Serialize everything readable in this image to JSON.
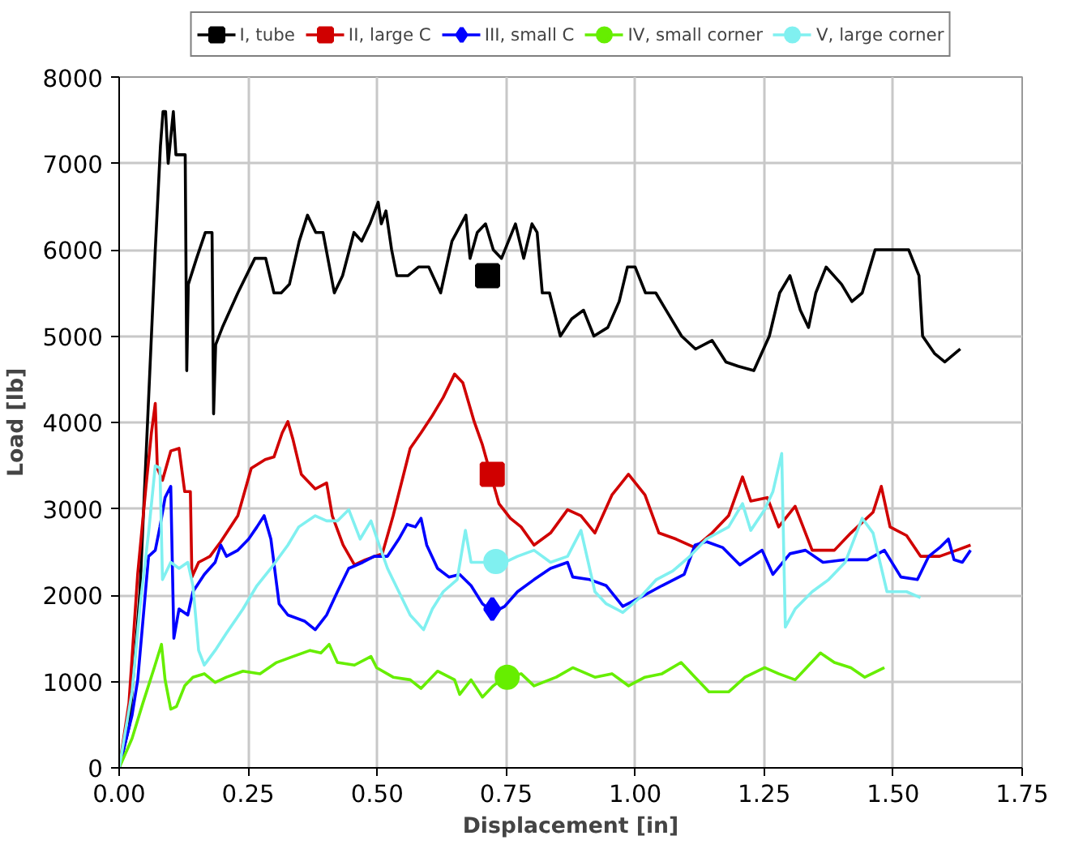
{
  "chart_data": {
    "type": "line",
    "xlabel": "Displacement [in]",
    "ylabel": "Load [lb]",
    "xlim": [
      0,
      1.75
    ],
    "ylim": [
      0,
      8000
    ],
    "xticks": [
      {
        "value": 0,
        "label": "0.00"
      },
      {
        "value": 0.25,
        "label": "0.25"
      },
      {
        "value": 0.5,
        "label": "0.50"
      },
      {
        "value": 0.75,
        "label": "0.75"
      },
      {
        "value": 1.0,
        "label": "1.00"
      },
      {
        "value": 1.25,
        "label": "1.25"
      },
      {
        "value": 1.5,
        "label": "1.50"
      },
      {
        "value": 1.75,
        "label": "1.75"
      }
    ],
    "yticks": [
      0,
      1000,
      2000,
      3000,
      4000,
      5000,
      6000,
      7000,
      8000
    ],
    "grid": true,
    "legend": "top",
    "line_style": "solid",
    "series": [
      {
        "name": "I, tube",
        "color": "#000000",
        "x": [
          0,
          0.02,
          0.04,
          0.055,
          0.07,
          0.08,
          0.085,
          0.09,
          0.095,
          0.1,
          0.105,
          0.11,
          0.118,
          0.128,
          0.131,
          0.134,
          0.15,
          0.167,
          0.18,
          0.183,
          0.187,
          0.2,
          0.23,
          0.263,
          0.284,
          0.3,
          0.314,
          0.33,
          0.349,
          0.365,
          0.381,
          0.395,
          0.417,
          0.433,
          0.455,
          0.47,
          0.486,
          0.502,
          0.508,
          0.517,
          0.528,
          0.538,
          0.56,
          0.58,
          0.6,
          0.623,
          0.645,
          0.672,
          0.68,
          0.694,
          0.71,
          0.725,
          0.741,
          0.768,
          0.784,
          0.8,
          0.81,
          0.82,
          0.834,
          0.855,
          0.877,
          0.9,
          0.92,
          0.947,
          0.969,
          0.985,
          1.0,
          1.02,
          1.04,
          1.06,
          1.09,
          1.117,
          1.149,
          1.176,
          1.2,
          1.23,
          1.26,
          1.28,
          1.3,
          1.32,
          1.336,
          1.35,
          1.37,
          1.4,
          1.42,
          1.44,
          1.465,
          1.5,
          1.53,
          1.55,
          1.557,
          1.58,
          1.6,
          1.63
        ],
        "values": [
          0,
          500,
          2000,
          4000,
          6000,
          7200,
          7600,
          7600,
          7000,
          7300,
          7600,
          7100,
          7100,
          7100,
          4600,
          5600,
          5900,
          6200,
          6200,
          4100,
          4900,
          5100,
          5500,
          5900,
          5900,
          5500,
          5500,
          5600,
          6100,
          6400,
          6200,
          6200,
          5500,
          5700,
          6200,
          6100,
          6300,
          6550,
          6300,
          6450,
          6000,
          5700,
          5700,
          5800,
          5800,
          5500,
          6100,
          6400,
          5900,
          6200,
          6300,
          6000,
          5900,
          6300,
          5900,
          6300,
          6200,
          5500,
          5500,
          5000,
          5200,
          5300,
          5000,
          5100,
          5400,
          5800,
          5800,
          5500,
          5500,
          5300,
          5000,
          4850,
          4950,
          4700,
          4650,
          4600,
          5000,
          5500,
          5700,
          5300,
          5100,
          5500,
          5800,
          5600,
          5400,
          5500,
          6000,
          6000,
          6000,
          5700,
          5000,
          4800,
          4700,
          4850
        ]
      },
      {
        "type": "scatter",
        "marker": "square",
        "color": "#000000",
        "x": [
          0.714
        ],
        "values": [
          5700
        ]
      },
      {
        "name": "II, large C",
        "color": "#d00000",
        "x": [
          0,
          0.019,
          0.036,
          0.052,
          0.0625,
          0.07,
          0.074,
          0.084,
          0.1,
          0.116,
          0.127,
          0.138,
          0.141,
          0.154,
          0.176,
          0.197,
          0.23,
          0.256,
          0.283,
          0.3,
          0.316,
          0.327,
          0.337,
          0.353,
          0.38,
          0.402,
          0.413,
          0.434,
          0.456,
          0.477,
          0.51,
          0.531,
          0.564,
          0.585,
          0.607,
          0.628,
          0.65,
          0.666,
          0.688,
          0.704,
          0.72,
          0.736,
          0.758,
          0.779,
          0.804,
          0.836,
          0.869,
          0.895,
          0.922,
          0.955,
          0.987,
          1.019,
          1.046,
          1.079,
          1.116,
          1.149,
          1.181,
          1.208,
          1.224,
          1.256,
          1.278,
          1.31,
          1.343,
          1.386,
          1.418,
          1.461,
          1.477,
          1.494,
          1.526,
          1.553,
          1.59,
          1.623,
          1.65
        ],
        "values": [
          0,
          750,
          2250,
          3260,
          3880,
          4220,
          3470,
          3330,
          3670,
          3700,
          3200,
          3200,
          2210,
          2380,
          2450,
          2620,
          2920,
          3470,
          3570,
          3600,
          3880,
          4010,
          3800,
          3400,
          3230,
          3300,
          2920,
          2580,
          2350,
          2410,
          2480,
          2920,
          3700,
          3880,
          4080,
          4290,
          4560,
          4460,
          4010,
          3740,
          3400,
          3060,
          2890,
          2790,
          2580,
          2720,
          2990,
          2920,
          2720,
          3160,
          3400,
          3160,
          2720,
          2650,
          2550,
          2720,
          2920,
          3370,
          3090,
          3130,
          2790,
          3030,
          2520,
          2520,
          2720,
          2960,
          3260,
          2790,
          2690,
          2450,
          2450,
          2520,
          2580
        ]
      },
      {
        "type": "scatter",
        "marker": "square",
        "color": "#d00000",
        "x": [
          0.723
        ],
        "values": [
          3400
        ]
      },
      {
        "name": "III, small C",
        "color": "#0000ff",
        "x": [
          0,
          0.025,
          0.036,
          0.046,
          0.057,
          0.07,
          0.079,
          0.089,
          0.1,
          0.106,
          0.116,
          0.133,
          0.143,
          0.165,
          0.186,
          0.197,
          0.208,
          0.23,
          0.251,
          0.267,
          0.281,
          0.294,
          0.31,
          0.327,
          0.359,
          0.38,
          0.402,
          0.423,
          0.445,
          0.472,
          0.494,
          0.52,
          0.542,
          0.558,
          0.574,
          0.585,
          0.596,
          0.617,
          0.639,
          0.66,
          0.682,
          0.704,
          0.725,
          0.747,
          0.772,
          0.804,
          0.836,
          0.869,
          0.879,
          0.912,
          0.944,
          0.976,
          1.009,
          1.052,
          1.095,
          1.116,
          1.138,
          1.17,
          1.203,
          1.246,
          1.267,
          1.3,
          1.33,
          1.364,
          1.407,
          1.45,
          1.483,
          1.515,
          1.547,
          1.569,
          1.59,
          1.607,
          1.618,
          1.634,
          1.65
        ],
        "values": [
          0,
          610,
          1020,
          1700,
          2450,
          2520,
          2790,
          3130,
          3260,
          1500,
          1840,
          1770,
          2040,
          2240,
          2380,
          2580,
          2450,
          2520,
          2650,
          2790,
          2920,
          2650,
          1900,
          1770,
          1700,
          1600,
          1770,
          2040,
          2310,
          2380,
          2450,
          2450,
          2650,
          2820,
          2790,
          2890,
          2580,
          2310,
          2210,
          2240,
          2110,
          1900,
          1800,
          1870,
          2040,
          2180,
          2310,
          2380,
          2210,
          2180,
          2110,
          1870,
          1970,
          2110,
          2240,
          2580,
          2620,
          2550,
          2350,
          2520,
          2240,
          2480,
          2520,
          2380,
          2410,
          2410,
          2520,
          2210,
          2180,
          2450,
          2550,
          2650,
          2410,
          2380,
          2520
        ]
      },
      {
        "type": "scatter",
        "marker": "diamond",
        "color": "#0000ff",
        "x": [
          0.723
        ],
        "values": [
          1840
        ]
      },
      {
        "name": "IV, small corner",
        "color": "#66ee00",
        "x": [
          0,
          0.025,
          0.046,
          0.068,
          0.082,
          0.089,
          0.1,
          0.111,
          0.127,
          0.143,
          0.165,
          0.186,
          0.208,
          0.24,
          0.273,
          0.305,
          0.337,
          0.37,
          0.391,
          0.407,
          0.423,
          0.456,
          0.488,
          0.499,
          0.531,
          0.564,
          0.585,
          0.617,
          0.65,
          0.66,
          0.682,
          0.704,
          0.725,
          0.747,
          0.779,
          0.804,
          0.847,
          0.879,
          0.922,
          0.955,
          0.987,
          1.019,
          1.052,
          1.089,
          1.116,
          1.143,
          1.181,
          1.213,
          1.251,
          1.278,
          1.31,
          1.332,
          1.359,
          1.386,
          1.418,
          1.445,
          1.483
        ],
        "values": [
          0,
          340,
          750,
          1160,
          1430,
          1020,
          680,
          710,
          950,
          1050,
          1090,
          990,
          1050,
          1120,
          1090,
          1220,
          1290,
          1360,
          1330,
          1430,
          1220,
          1190,
          1290,
          1160,
          1050,
          1020,
          920,
          1120,
          1020,
          850,
          1020,
          820,
          950,
          1050,
          1090,
          950,
          1050,
          1160,
          1050,
          1090,
          950,
          1050,
          1090,
          1220,
          1050,
          880,
          880,
          1050,
          1160,
          1090,
          1020,
          1160,
          1330,
          1220,
          1160,
          1050,
          1160
        ]
      },
      {
        "type": "scatter",
        "marker": "circle",
        "color": "#66ee00",
        "x": [
          0.752
        ],
        "values": [
          1050
        ]
      },
      {
        "name": "V, large corner",
        "color": "#80f0f0",
        "x": [
          0,
          0.025,
          0.041,
          0.057,
          0.07,
          0.079,
          0.084,
          0.1,
          0.116,
          0.133,
          0.143,
          0.154,
          0.165,
          0.186,
          0.208,
          0.24,
          0.267,
          0.294,
          0.327,
          0.348,
          0.38,
          0.402,
          0.423,
          0.445,
          0.467,
          0.488,
          0.504,
          0.52,
          0.542,
          0.564,
          0.59,
          0.607,
          0.628,
          0.655,
          0.671,
          0.682,
          0.704,
          0.747,
          0.772,
          0.804,
          0.836,
          0.869,
          0.895,
          0.922,
          0.944,
          0.976,
          1.009,
          1.041,
          1.073,
          1.106,
          1.138,
          1.181,
          1.208,
          1.224,
          1.251,
          1.267,
          1.284,
          1.291,
          1.31,
          1.343,
          1.375,
          1.407,
          1.44,
          1.461,
          1.488,
          1.526,
          1.553
        ],
        "values": [
          0,
          880,
          1900,
          2720,
          3500,
          3470,
          2180,
          2380,
          2310,
          2380,
          2110,
          1360,
          1190,
          1360,
          1560,
          1840,
          2110,
          2310,
          2580,
          2790,
          2920,
          2860,
          2860,
          2990,
          2650,
          2860,
          2580,
          2310,
          2040,
          1770,
          1600,
          1840,
          2040,
          2180,
          2750,
          2380,
          2380,
          2380,
          2450,
          2520,
          2380,
          2450,
          2750,
          2040,
          1900,
          1800,
          1970,
          2180,
          2280,
          2450,
          2650,
          2790,
          3060,
          2750,
          2990,
          3200,
          3640,
          1630,
          1840,
          2040,
          2180,
          2380,
          2890,
          2720,
          2040,
          2040,
          1970
        ]
      },
      {
        "type": "scatter",
        "marker": "circle",
        "color": "#80f0f0",
        "x": [
          0.73
        ],
        "values": [
          2390
        ]
      }
    ]
  }
}
